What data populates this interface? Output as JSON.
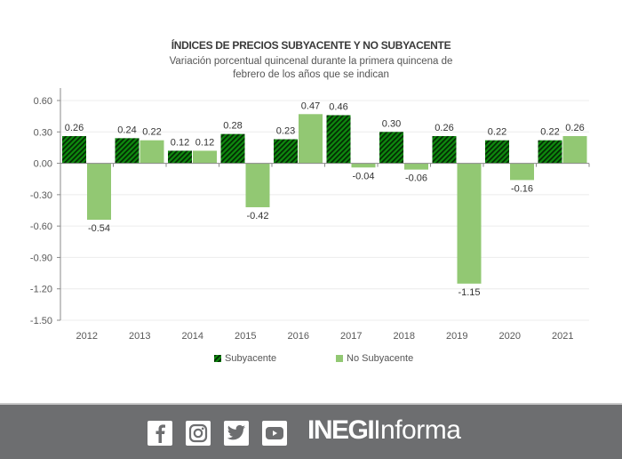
{
  "chart_data": {
    "type": "bar",
    "title": "ÍNDICES DE PRECIOS SUBYACENTE Y NO SUBYACENTE",
    "subtitle": "Variación porcentual quincenal durante la primera quincena de febrero de los años que se indican",
    "xlabel": "",
    "ylabel": "",
    "categories": [
      "2012",
      "2013",
      "2014",
      "2015",
      "2016",
      "2017",
      "2018",
      "2019",
      "2020",
      "2021"
    ],
    "series": [
      {
        "name": "Subyacente",
        "values": [
          0.26,
          0.24,
          0.12,
          0.28,
          0.23,
          0.46,
          0.3,
          0.26,
          0.22,
          0.22
        ],
        "color": "#0b7a0b",
        "pattern": "diagonal-hatch",
        "labels": [
          "0.26",
          "0.24",
          "0.12",
          "0.28",
          "0.23",
          "0.46",
          "0.30",
          "0.26",
          "0.22",
          "0.22"
        ]
      },
      {
        "name": "No Subyacente",
        "values": [
          -0.54,
          0.22,
          0.12,
          -0.42,
          0.47,
          -0.04,
          -0.06,
          -1.15,
          -0.16,
          0.26
        ],
        "color": "#92c873",
        "pattern": "solid",
        "labels": [
          "-0.54",
          "0.22",
          "0.12",
          "-0.42",
          "0.47",
          "-0.04",
          "-0.06",
          "-1.15",
          "-0.16",
          "0.26"
        ]
      }
    ],
    "ylim": [
      -1.5,
      0.6
    ],
    "yticks": [
      0.6,
      0.3,
      0.0,
      -0.3,
      -0.6,
      -0.9,
      -1.2,
      -1.5
    ],
    "ytick_labels": [
      "0.60",
      "0.30",
      "0.00",
      "-0.30",
      "-0.60",
      "-0.90",
      "-1.20",
      "-1.50"
    ],
    "grid": true,
    "legend_position": "bottom"
  },
  "footer": {
    "social_icons": [
      "facebook-icon",
      "instagram-icon",
      "twitter-icon",
      "youtube-icon"
    ],
    "brand_bold": "INEGI",
    "brand_light": "Informa",
    "background": "#6d6e70"
  }
}
